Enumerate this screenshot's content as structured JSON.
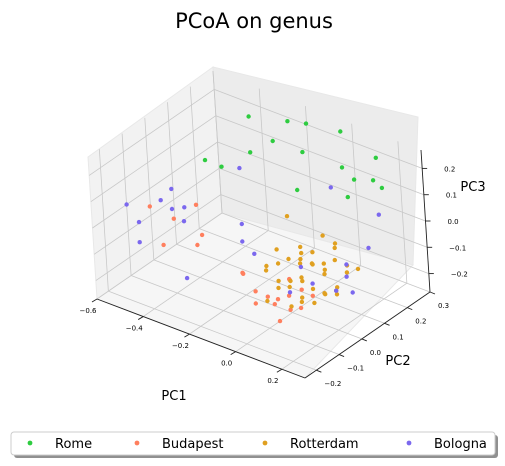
{
  "chart_data": {
    "type": "scatter",
    "projection": "3d",
    "title": "PCoA on genus",
    "xlabel": "PC1",
    "ylabel": "PC2",
    "zlabel": "PC3",
    "xlim": [
      -0.6,
      0.3
    ],
    "ylim": [
      -0.25,
      0.3
    ],
    "zlim": [
      -0.27,
      0.27
    ],
    "xticks": [
      "−0.6",
      "−0.4",
      "−0.2",
      "0.0",
      "0.2"
    ],
    "yticks": [
      "−0.2",
      "−0.1",
      "0.0",
      "0.1",
      "0.2",
      "0.3"
    ],
    "zticks": [
      "−0.2",
      "−0.1",
      "0.0",
      "0.1",
      "0.2"
    ],
    "grid": true,
    "legend_position": "bottom",
    "series": [
      {
        "name": "Rome",
        "color": "#2ecc40",
        "points": [
          [
            -0.35,
            0.2,
            0.24
          ],
          [
            -0.2,
            0.22,
            0.26
          ],
          [
            0.0,
            0.25,
            0.27
          ],
          [
            0.15,
            0.25,
            0.22
          ],
          [
            -0.45,
            0.1,
            0.1
          ],
          [
            -0.4,
            0.12,
            0.08
          ],
          [
            -0.3,
            0.15,
            0.15
          ],
          [
            -0.25,
            0.2,
            0.18
          ],
          [
            -0.1,
            0.18,
            0.2
          ],
          [
            0.05,
            0.2,
            0.18
          ],
          [
            0.1,
            0.2,
            0.15
          ],
          [
            -0.15,
            0.25,
            0.25
          ],
          [
            0.2,
            0.22,
            0.14
          ],
          [
            0.1,
            0.28,
            0.1
          ],
          [
            -0.05,
            0.1,
            0.12
          ],
          [
            0.12,
            0.15,
            0.12
          ]
        ]
      },
      {
        "name": "Budapest",
        "color": "#ff7f5e",
        "points": [
          [
            -0.55,
            -0.05,
            -0.02
          ],
          [
            -0.5,
            -0.05,
            -0.15
          ],
          [
            -0.5,
            0.0,
            -0.08
          ],
          [
            -0.45,
            0.05,
            -0.04
          ],
          [
            -0.35,
            -0.05,
            -0.1
          ],
          [
            -0.4,
            0.02,
            -0.12
          ],
          [
            0.0,
            -0.1,
            -0.15
          ],
          [
            0.05,
            -0.05,
            -0.1
          ],
          [
            0.1,
            -0.1,
            -0.05
          ],
          [
            0.15,
            -0.15,
            -0.12
          ],
          [
            0.2,
            -0.1,
            -0.08
          ],
          [
            0.1,
            -0.15,
            -0.18
          ],
          [
            0.05,
            -0.2,
            -0.1
          ],
          [
            0.15,
            -0.2,
            -0.05
          ],
          [
            0.2,
            -0.2,
            -0.02
          ],
          [
            0.25,
            -0.2,
            -0.05
          ],
          [
            0.0,
            -0.2,
            0.0
          ],
          [
            -0.05,
            -0.15,
            -0.05
          ],
          [
            0.1,
            -0.05,
            -0.12
          ],
          [
            0.0,
            -0.15,
            -0.1
          ],
          [
            0.05,
            -0.12,
            -0.15
          ]
        ]
      },
      {
        "name": "Rotterdam",
        "color": "#e0a020",
        "points": [
          [
            0.0,
            -0.05,
            0.0
          ],
          [
            0.05,
            0.0,
            -0.05
          ],
          [
            0.1,
            0.0,
            -0.05
          ],
          [
            0.1,
            0.05,
            -0.08
          ],
          [
            0.15,
            0.05,
            -0.05
          ],
          [
            0.05,
            -0.1,
            -0.1
          ],
          [
            0.0,
            -0.05,
            -0.12
          ],
          [
            0.1,
            -0.1,
            -0.08
          ],
          [
            0.15,
            -0.05,
            -0.1
          ],
          [
            0.05,
            0.05,
            -0.1
          ],
          [
            -0.05,
            0.0,
            -0.1
          ],
          [
            0.05,
            -0.15,
            -0.12
          ],
          [
            0.0,
            0.0,
            -0.15
          ],
          [
            0.1,
            0.05,
            -0.12
          ],
          [
            0.15,
            0.0,
            -0.15
          ],
          [
            0.05,
            0.0,
            -0.12
          ],
          [
            0.1,
            -0.05,
            -0.15
          ],
          [
            0.2,
            0.0,
            -0.12
          ],
          [
            0.15,
            0.1,
            -0.1
          ],
          [
            0.05,
            0.1,
            -0.15
          ],
          [
            0.0,
            0.05,
            -0.05
          ],
          [
            -0.05,
            -0.05,
            -0.08
          ],
          [
            0.1,
            0.1,
            -0.05
          ],
          [
            0.05,
            -0.05,
            -0.02
          ],
          [
            0.0,
            -0.1,
            -0.05
          ],
          [
            0.2,
            -0.05,
            -0.1
          ],
          [
            0.15,
            -0.1,
            -0.12
          ],
          [
            0.1,
            0.0,
            -0.2
          ],
          [
            0.05,
            -0.05,
            -0.2
          ],
          [
            0.0,
            0.05,
            -0.18
          ],
          [
            0.1,
            -0.05,
            -0.02
          ],
          [
            -0.05,
            0.05,
            0.05
          ],
          [
            0.1,
            0.1,
            -0.2
          ],
          [
            0.15,
            0.05,
            -0.18
          ],
          [
            0.2,
            0.05,
            -0.08
          ],
          [
            0.05,
            0.1,
            -0.02
          ],
          [
            0.0,
            0.1,
            -0.1
          ],
          [
            0.25,
            0.05,
            -0.05
          ],
          [
            -0.05,
            0.1,
            -0.12
          ],
          [
            0.05,
            0.15,
            -0.08
          ]
        ]
      },
      {
        "name": "Bologna",
        "color": "#7b68ee",
        "points": [
          [
            -0.6,
            -0.1,
            0.0
          ],
          [
            -0.55,
            -0.1,
            -0.05
          ],
          [
            -0.5,
            -0.05,
            0.02
          ],
          [
            -0.45,
            0.0,
            -0.02
          ],
          [
            -0.4,
            -0.1,
            0.05
          ],
          [
            -0.5,
            -0.15,
            -0.08
          ],
          [
            -0.3,
            -0.15,
            -0.15
          ],
          [
            -0.2,
            0.0,
            0.0
          ],
          [
            -0.15,
            -0.05,
            -0.02
          ],
          [
            -0.3,
            0.1,
            0.12
          ],
          [
            0.1,
            0.1,
            0.18
          ],
          [
            0.2,
            0.2,
            0.05
          ],
          [
            0.25,
            0.1,
            0.0
          ],
          [
            0.2,
            0.05,
            -0.05
          ],
          [
            0.25,
            0.0,
            -0.05
          ],
          [
            0.15,
            -0.05,
            -0.08
          ],
          [
            0.2,
            0.0,
            -0.12
          ],
          [
            0.05,
            0.0,
            -0.08
          ],
          [
            -0.1,
            -0.05,
            -0.05
          ],
          [
            -0.35,
            -0.1,
            0.02
          ],
          [
            0.22,
            0.05,
            -0.15
          ],
          [
            0.1,
            -0.1,
            -0.1
          ],
          [
            -0.45,
            -0.05,
            0.08
          ]
        ]
      }
    ]
  }
}
